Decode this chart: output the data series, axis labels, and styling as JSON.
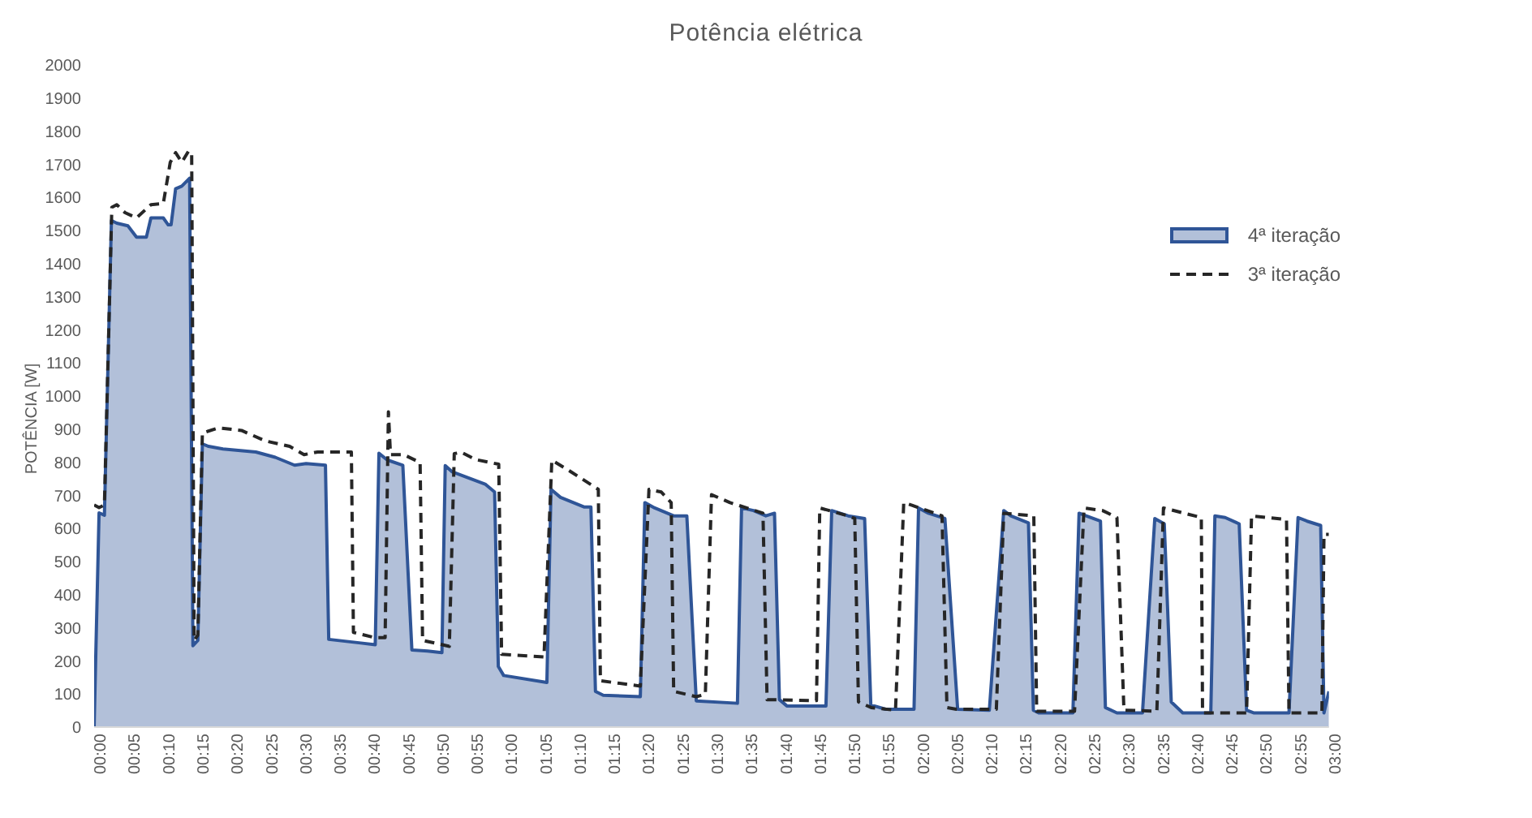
{
  "chart_data": {
    "type": "area",
    "title": "Potência elétrica",
    "ylabel": "POTÊNCIA [W]",
    "legend": "top right",
    "grid": false,
    "xlim": [
      0,
      3
    ],
    "ylim": [
      0,
      2000
    ],
    "yticks": [
      0,
      100,
      200,
      300,
      400,
      500,
      600,
      700,
      800,
      900,
      1000,
      1100,
      1200,
      1300,
      1400,
      1500,
      1600,
      1700,
      1800,
      1900,
      2000
    ],
    "xticks": [
      {
        "value": 0,
        "label": "00:00"
      },
      {
        "value": 0.0833,
        "label": "00:05"
      },
      {
        "value": 0.1667,
        "label": "00:10"
      },
      {
        "value": 0.25,
        "label": "00:15"
      },
      {
        "value": 0.3333,
        "label": "00:20"
      },
      {
        "value": 0.4167,
        "label": "00:25"
      },
      {
        "value": 0.5,
        "label": "00:30"
      },
      {
        "value": 0.5833,
        "label": "00:35"
      },
      {
        "value": 0.6667,
        "label": "00:40"
      },
      {
        "value": 0.75,
        "label": "00:45"
      },
      {
        "value": 0.8333,
        "label": "00:50"
      },
      {
        "value": 0.9167,
        "label": "00:55"
      },
      {
        "value": 1,
        "label": "01:00"
      },
      {
        "value": 1.0833,
        "label": "01:05"
      },
      {
        "value": 1.1667,
        "label": "01:10"
      },
      {
        "value": 1.25,
        "label": "01:15"
      },
      {
        "value": 1.3333,
        "label": "01:20"
      },
      {
        "value": 1.4167,
        "label": "01:25"
      },
      {
        "value": 1.5,
        "label": "01:30"
      },
      {
        "value": 1.5833,
        "label": "01:35"
      },
      {
        "value": 1.6667,
        "label": "01:40"
      },
      {
        "value": 1.75,
        "label": "01:45"
      },
      {
        "value": 1.8333,
        "label": "01:50"
      },
      {
        "value": 1.9167,
        "label": "01:55"
      },
      {
        "value": 2,
        "label": "02:00"
      },
      {
        "value": 2.0833,
        "label": "02:05"
      },
      {
        "value": 2.1667,
        "label": "02:10"
      },
      {
        "value": 2.25,
        "label": "02:15"
      },
      {
        "value": 2.3333,
        "label": "02:20"
      },
      {
        "value": 2.4167,
        "label": "02:25"
      },
      {
        "value": 2.5,
        "label": "02:30"
      },
      {
        "value": 2.5833,
        "label": "02:35"
      },
      {
        "value": 2.6667,
        "label": "02:40"
      },
      {
        "value": 2.75,
        "label": "02:45"
      },
      {
        "value": 2.8333,
        "label": "02:50"
      },
      {
        "value": 2.9167,
        "label": "02:55"
      },
      {
        "value": 3,
        "label": "03:00"
      }
    ],
    "series": [
      {
        "name": "4ª iteração",
        "color": "#2f5597",
        "x": [
          0,
          0.012,
          0.025,
          0.042,
          0.055,
          0.082,
          0.103,
          0.127,
          0.138,
          0.168,
          0.18,
          0.187,
          0.198,
          0.213,
          0.232,
          0.24,
          0.252,
          0.263,
          0.278,
          0.313,
          0.393,
          0.44,
          0.487,
          0.515,
          0.562,
          0.57,
          0.648,
          0.683,
          0.692,
          0.712,
          0.75,
          0.772,
          0.81,
          0.845,
          0.853,
          0.87,
          0.95,
          0.973,
          0.982,
          0.995,
          1.1,
          1.11,
          1.133,
          1.19,
          1.207,
          1.218,
          1.237,
          1.327,
          1.338,
          1.362,
          1.408,
          1.44,
          1.463,
          1.563,
          1.573,
          1.602,
          1.632,
          1.653,
          1.665,
          1.683,
          1.778,
          1.792,
          1.832,
          1.872,
          1.887,
          1.923,
          1.992,
          2.003,
          2.027,
          2.067,
          2.098,
          2.175,
          2.21,
          2.227,
          2.27,
          2.282,
          2.295,
          2.378,
          2.393,
          2.41,
          2.445,
          2.457,
          2.485,
          2.547,
          2.577,
          2.6,
          2.617,
          2.645,
          2.713,
          2.723,
          2.748,
          2.782,
          2.8,
          2.817,
          2.903,
          2.925,
          2.947,
          2.98,
          2.988,
          3
        ],
        "values": [
          0,
          647,
          640,
          1530,
          1522,
          1514,
          1480,
          1480,
          1538,
          1538,
          1517,
          1517,
          1626,
          1634,
          1658,
          246,
          262,
          855,
          848,
          840,
          831,
          815,
          791,
          796,
          791,
          265,
          254,
          249,
          827,
          807,
          791,
          233,
          230,
          225,
          790,
          771,
          734,
          710,
          183,
          156,
          135,
          718,
          694,
          665,
          665,
          108,
          96,
          92,
          678,
          662,
          638,
          638,
          79,
          72,
          662,
          654,
          638,
          646,
          83,
          64,
          64,
          654,
          638,
          630,
          67,
          54,
          54,
          662,
          646,
          630,
          54,
          51,
          654,
          638,
          617,
          51,
          43,
          43,
          646,
          638,
          622,
          59,
          43,
          43,
          630,
          614,
          76,
          43,
          43,
          638,
          633,
          614,
          51,
          43,
          43,
          633,
          622,
          609,
          43,
          108
        ]
      },
      {
        "name": "3ª iteração",
        "type": "line",
        "line_style": "dashed",
        "color": "#262626",
        "x": [
          0,
          0.012,
          0.025,
          0.043,
          0.055,
          0.075,
          0.103,
          0.138,
          0.168,
          0.185,
          0.198,
          0.213,
          0.23,
          0.237,
          0.243,
          0.252,
          0.263,
          0.302,
          0.358,
          0.417,
          0.475,
          0.51,
          0.543,
          0.625,
          0.63,
          0.683,
          0.707,
          0.715,
          0.72,
          0.752,
          0.792,
          0.798,
          0.863,
          0.875,
          0.892,
          0.927,
          0.983,
          0.99,
          1.093,
          1.112,
          1.155,
          1.225,
          1.23,
          1.327,
          1.348,
          1.378,
          1.402,
          1.408,
          1.463,
          1.485,
          1.5,
          1.545,
          1.625,
          1.635,
          1.755,
          1.763,
          1.832,
          1.848,
          1.857,
          1.888,
          1.947,
          1.967,
          1.987,
          2.06,
          2.072,
          2.095,
          2.192,
          2.21,
          2.283,
          2.29,
          2.382,
          2.405,
          2.45,
          2.485,
          2.502,
          2.582,
          2.598,
          2.69,
          2.693,
          2.8,
          2.812,
          2.897,
          2.903,
          2.983,
          2.988,
          3
        ],
        "values": [
          671,
          663,
          671,
          1570,
          1578,
          1554,
          1538,
          1578,
          1581,
          1706,
          1735,
          1706,
          1741,
          1730,
          262,
          278,
          888,
          904,
          896,
          864,
          848,
          823,
          831,
          831,
          286,
          270,
          270,
          952,
          823,
          823,
          799,
          262,
          244,
          826,
          830,
          808,
          794,
          220,
          212,
          806,
          774,
          718,
          140,
          124,
          718,
          710,
          678,
          108,
          92,
          99,
          702,
          678,
          646,
          83,
          80,
          662,
          638,
          630,
          76,
          59,
          51,
          678,
          670,
          638,
          59,
          54,
          54,
          646,
          638,
          48,
          48,
          662,
          654,
          633,
          51,
          48,
          662,
          633,
          43,
          43,
          638,
          627,
          43,
          43,
          582,
          582
        ]
      }
    ]
  }
}
